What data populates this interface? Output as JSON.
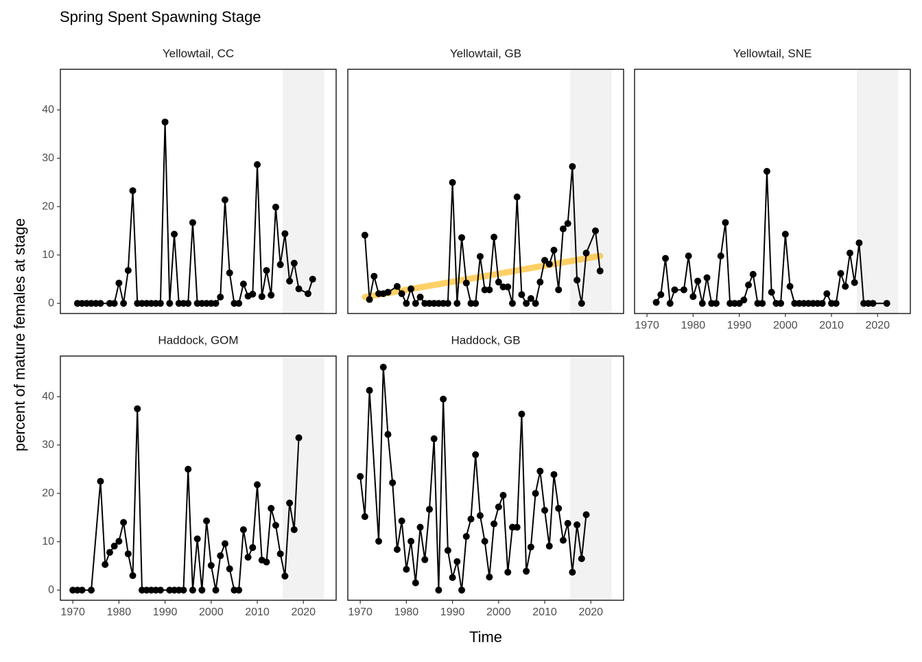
{
  "chart_data": {
    "type": "line",
    "title": "Spring Spent Spawning Stage",
    "x_label": "Time",
    "y_label": "percent of mature females at stage",
    "xlim": [
      1967.3,
      2027.1
    ],
    "ylim": [
      -2.1,
      48.4
    ],
    "xticks": [
      1970,
      1980,
      1990,
      2000,
      2010,
      2020
    ],
    "yticks": [
      0,
      10,
      20,
      30,
      40
    ],
    "highlight_range": [
      2015.5,
      2024.5
    ],
    "highlight_color": "#f2f2f2",
    "color": "#000000",
    "columns": 3,
    "facets": [
      {
        "title": "Yellowtail, CC",
        "x": [
          1971,
          1972,
          1973,
          1974,
          1975,
          1976,
          1978,
          1979,
          1980,
          1981,
          1982,
          1983,
          1984,
          1985,
          1986,
          1987,
          1988,
          1989,
          1990,
          1991,
          1992,
          1993,
          1994,
          1995,
          1996,
          1997,
          1998,
          1999,
          2000,
          2001,
          2002,
          2003,
          2004,
          2005,
          2006,
          2007,
          2008,
          2009,
          2010,
          2011,
          2012,
          2013,
          2014,
          2015,
          2016,
          2017,
          2018,
          2019,
          2021,
          2022
        ],
        "values": [
          0,
          0,
          0,
          0,
          0,
          0,
          0,
          0,
          4.2,
          0,
          6.8,
          23.3,
          0,
          0,
          0,
          0,
          0,
          0,
          37.5,
          0,
          14.3,
          0,
          0,
          0,
          16.7,
          0,
          0,
          0,
          0,
          0,
          1.3,
          21.4,
          6.3,
          0,
          0,
          4.0,
          1.5,
          1.9,
          28.7,
          1.4,
          6.8,
          1.7,
          19.9,
          8.0,
          14.4,
          4.6,
          8.3,
          3.0,
          2.0,
          5.0
        ]
      },
      {
        "title": "Yellowtail, GB",
        "x": [
          1971,
          1972,
          1973,
          1974,
          1975,
          1976,
          1978,
          1979,
          1980,
          1981,
          1982,
          1983,
          1984,
          1985,
          1986,
          1987,
          1988,
          1989,
          1990,
          1991,
          1992,
          1993,
          1994,
          1995,
          1996,
          1997,
          1998,
          1999,
          2000,
          2001,
          2002,
          2003,
          2004,
          2005,
          2006,
          2007,
          2008,
          2009,
          2010,
          2011,
          2012,
          2013,
          2014,
          2015,
          2016,
          2017,
          2018,
          2019,
          2021,
          2022
        ],
        "values": [
          14.1,
          0.8,
          5.6,
          2.0,
          2.0,
          2.3,
          3.5,
          2.0,
          0,
          3.0,
          0,
          1.3,
          0,
          0,
          0,
          0,
          0,
          0,
          25.0,
          0,
          13.6,
          4.2,
          0,
          0,
          9.7,
          2.8,
          2.8,
          13.7,
          4.4,
          3.4,
          3.4,
          0,
          22.0,
          1.8,
          0,
          1.0,
          0,
          4.4,
          8.9,
          8.1,
          11.0,
          2.8,
          15.4,
          16.5,
          28.3,
          4.8,
          0,
          10.4,
          15.0,
          6.7
        ],
        "trend": {
          "x": [
            1971,
            2022
          ],
          "values": [
            1.3,
            9.8
          ],
          "color": "#ffb000"
        }
      },
      {
        "title": "Yellowtail, SNE",
        "x": [
          1972,
          1973,
          1974,
          1975,
          1976,
          1978,
          1979,
          1980,
          1981,
          1982,
          1983,
          1984,
          1985,
          1986,
          1987,
          1988,
          1989,
          1990,
          1991,
          1992,
          1993,
          1994,
          1995,
          1996,
          1997,
          1998,
          1999,
          2000,
          2001,
          2002,
          2003,
          2004,
          2005,
          2006,
          2007,
          2008,
          2009,
          2010,
          2011,
          2012,
          2013,
          2014,
          2015,
          2016,
          2017,
          2018,
          2019,
          2022
        ],
        "values": [
          0.2,
          1.8,
          9.3,
          0,
          2.8,
          2.8,
          9.8,
          1.4,
          4.6,
          0,
          5.3,
          0,
          0,
          9.8,
          16.7,
          0,
          0,
          0,
          0.7,
          3.8,
          6.0,
          0,
          0,
          27.3,
          2.3,
          0,
          0,
          14.3,
          3.5,
          0,
          0,
          0,
          0,
          0,
          0,
          0,
          2.0,
          0,
          0,
          6.2,
          3.5,
          10.4,
          4.3,
          12.5,
          0,
          0,
          0,
          0
        ]
      },
      {
        "title": "Haddock, GOM",
        "x": [
          1970,
          1971,
          1972,
          1974,
          1976,
          1977,
          1978,
          1979,
          1980,
          1981,
          1982,
          1983,
          1984,
          1985,
          1986,
          1987,
          1988,
          1989,
          1991,
          1992,
          1993,
          1994,
          1995,
          1996,
          1997,
          1998,
          1999,
          2000,
          2001,
          2002,
          2003,
          2004,
          2005,
          2006,
          2007,
          2008,
          2009,
          2010,
          2011,
          2012,
          2013,
          2014,
          2015,
          2016,
          2017,
          2018,
          2019
        ],
        "values": [
          0,
          0,
          0,
          0,
          22.5,
          5.3,
          7.8,
          9.1,
          10.1,
          14.0,
          7.5,
          3.0,
          37.5,
          0,
          0,
          0,
          0,
          0,
          0,
          0,
          0,
          0,
          25.0,
          0,
          10.6,
          0,
          14.3,
          5.1,
          0,
          7.1,
          9.6,
          4.4,
          0,
          0,
          12.5,
          6.8,
          8.8,
          21.8,
          6.2,
          5.8,
          16.9,
          13.4,
          7.5,
          2.9,
          18.0,
          12.5,
          31.5
        ]
      },
      {
        "title": "Haddock, GB",
        "x": [
          1970,
          1971,
          1972,
          1974,
          1975,
          1976,
          1977,
          1978,
          1979,
          1980,
          1981,
          1982,
          1983,
          1984,
          1985,
          1986,
          1987,
          1988,
          1989,
          1990,
          1991,
          1992,
          1993,
          1994,
          1995,
          1996,
          1997,
          1998,
          1999,
          2000,
          2001,
          2002,
          2003,
          2004,
          2005,
          2006,
          2007,
          2008,
          2009,
          2010,
          2011,
          2012,
          2013,
          2014,
          2015,
          2016,
          2017,
          2018,
          2019
        ],
        "values": [
          23.5,
          15.2,
          41.3,
          10.1,
          46.1,
          32.2,
          22.2,
          8.4,
          14.3,
          4.3,
          10.1,
          1.5,
          13.0,
          6.3,
          16.7,
          31.3,
          0,
          39.5,
          8.2,
          2.6,
          5.9,
          0,
          11.1,
          14.7,
          28.0,
          15.4,
          10.1,
          2.7,
          13.7,
          17.2,
          19.6,
          3.7,
          13.0,
          13.0,
          36.4,
          3.9,
          8.9,
          20.0,
          24.6,
          16.5,
          9.1,
          23.9,
          16.9,
          10.3,
          13.8,
          3.7,
          13.5,
          6.5,
          15.6
        ]
      }
    ]
  }
}
